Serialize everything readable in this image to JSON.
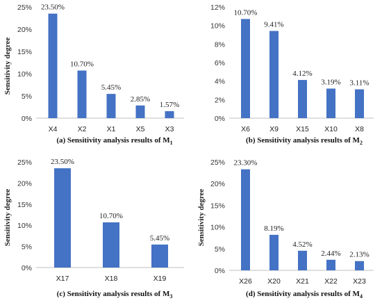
{
  "colors": {
    "bar": "#4472C4",
    "axis": "#BFBFBF"
  },
  "chart_data": [
    {
      "type": "bar",
      "caption": "(a) Sensitivity analysis results of M",
      "caption_sub": "1",
      "ylabel": "Sensitivity degree",
      "categories": [
        "X4",
        "X2",
        "X1",
        "X5",
        "X3"
      ],
      "values": [
        23.5,
        10.7,
        5.45,
        2.85,
        1.57
      ],
      "value_labels": [
        "23.50%",
        "10.70%",
        "5.45%",
        "2.85%",
        "1.57%"
      ],
      "ylim": [
        0,
        25
      ],
      "yticks": [
        0,
        5,
        10,
        15,
        20,
        25
      ],
      "ytick_labels": [
        "0%",
        "5%",
        "10%",
        "15%",
        "20%",
        "25%"
      ],
      "grid": false
    },
    {
      "type": "bar",
      "caption": "(b) Sensitivity analysis results of M",
      "caption_sub": "2",
      "ylabel": "",
      "categories": [
        "X6",
        "X9",
        "X15",
        "X10",
        "X8"
      ],
      "values": [
        10.7,
        9.41,
        4.12,
        3.19,
        3.11
      ],
      "value_labels": [
        "10.70%",
        "9.41%",
        "4.12%",
        "3.19%",
        "3.11%"
      ],
      "ylim": [
        0,
        12
      ],
      "yticks": [
        0,
        2,
        4,
        6,
        8,
        10,
        12
      ],
      "ytick_labels": [
        "0%",
        "2%",
        "4%",
        "6%",
        "8%",
        "10%",
        "12%"
      ],
      "grid": false
    },
    {
      "type": "bar",
      "caption": "(c) Sensitivity analysis results of M",
      "caption_sub": "3",
      "ylabel": "Sensitivity degree",
      "categories": [
        "X17",
        "X18",
        "X19"
      ],
      "values": [
        23.5,
        10.7,
        5.45
      ],
      "value_labels": [
        "23.50%",
        "10.70%",
        "5.45%"
      ],
      "ylim": [
        0,
        25
      ],
      "yticks": [
        0,
        5,
        10,
        15,
        20,
        25
      ],
      "ytick_labels": [
        "0%",
        "5%",
        "10%",
        "15%",
        "20%",
        "25%"
      ],
      "grid": false
    },
    {
      "type": "bar",
      "caption": "(d) Sensitivity analysis results of M",
      "caption_sub": "4",
      "ylabel": "Sensitivity degree",
      "categories": [
        "X26",
        "X20",
        "X21",
        "X22",
        "X23"
      ],
      "values": [
        23.3,
        8.19,
        4.52,
        2.44,
        2.13
      ],
      "value_labels": [
        "23.30%",
        "8.19%",
        "4.52%",
        "2.44%",
        "2.13%"
      ],
      "ylim": [
        0,
        25
      ],
      "yticks": [
        0,
        5,
        10,
        15,
        20,
        25
      ],
      "ytick_labels": [
        "0%",
        "5%",
        "10%",
        "15%",
        "20%",
        "25%"
      ],
      "grid": false
    }
  ]
}
